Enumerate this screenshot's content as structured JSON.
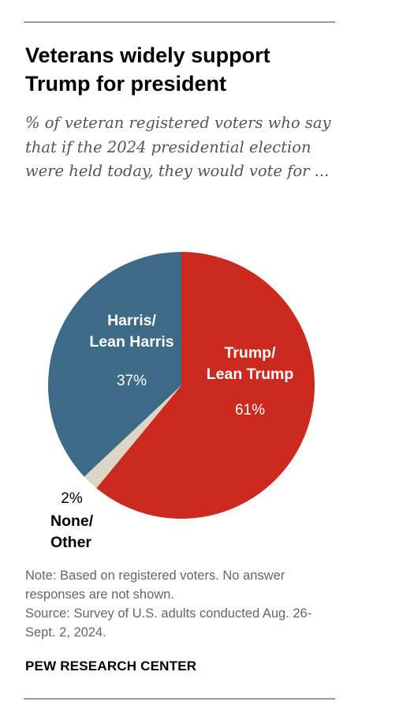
{
  "header": {
    "title": "Veterans widely support Trump for president",
    "subtitle": "% of veteran registered voters who say that if the 2024 presidential election were held today, they would vote for ..."
  },
  "chart_data": {
    "type": "pie",
    "slices": [
      {
        "label_lines": [
          "Trump/",
          "Lean Trump"
        ],
        "value": 61,
        "value_label": "61%",
        "color": "#cc2a1e"
      },
      {
        "label_lines": [
          "None/",
          "Other"
        ],
        "value": 2,
        "value_label": "2%",
        "color": "#dcd6c7"
      },
      {
        "label_lines": [
          "Harris/",
          "Lean Harris"
        ],
        "value": 37,
        "value_label": "37%",
        "color": "#3d6a86"
      }
    ],
    "start": "12 o'clock",
    "direction": "clockwise"
  },
  "footer": {
    "note": "Note: Based on registered voters. No answer responses are not shown.",
    "source": "Source: Survey of U.S. adults conducted Aug. 26-Sept. 2, 2024.",
    "brand": "PEW RESEARCH CENTER"
  }
}
